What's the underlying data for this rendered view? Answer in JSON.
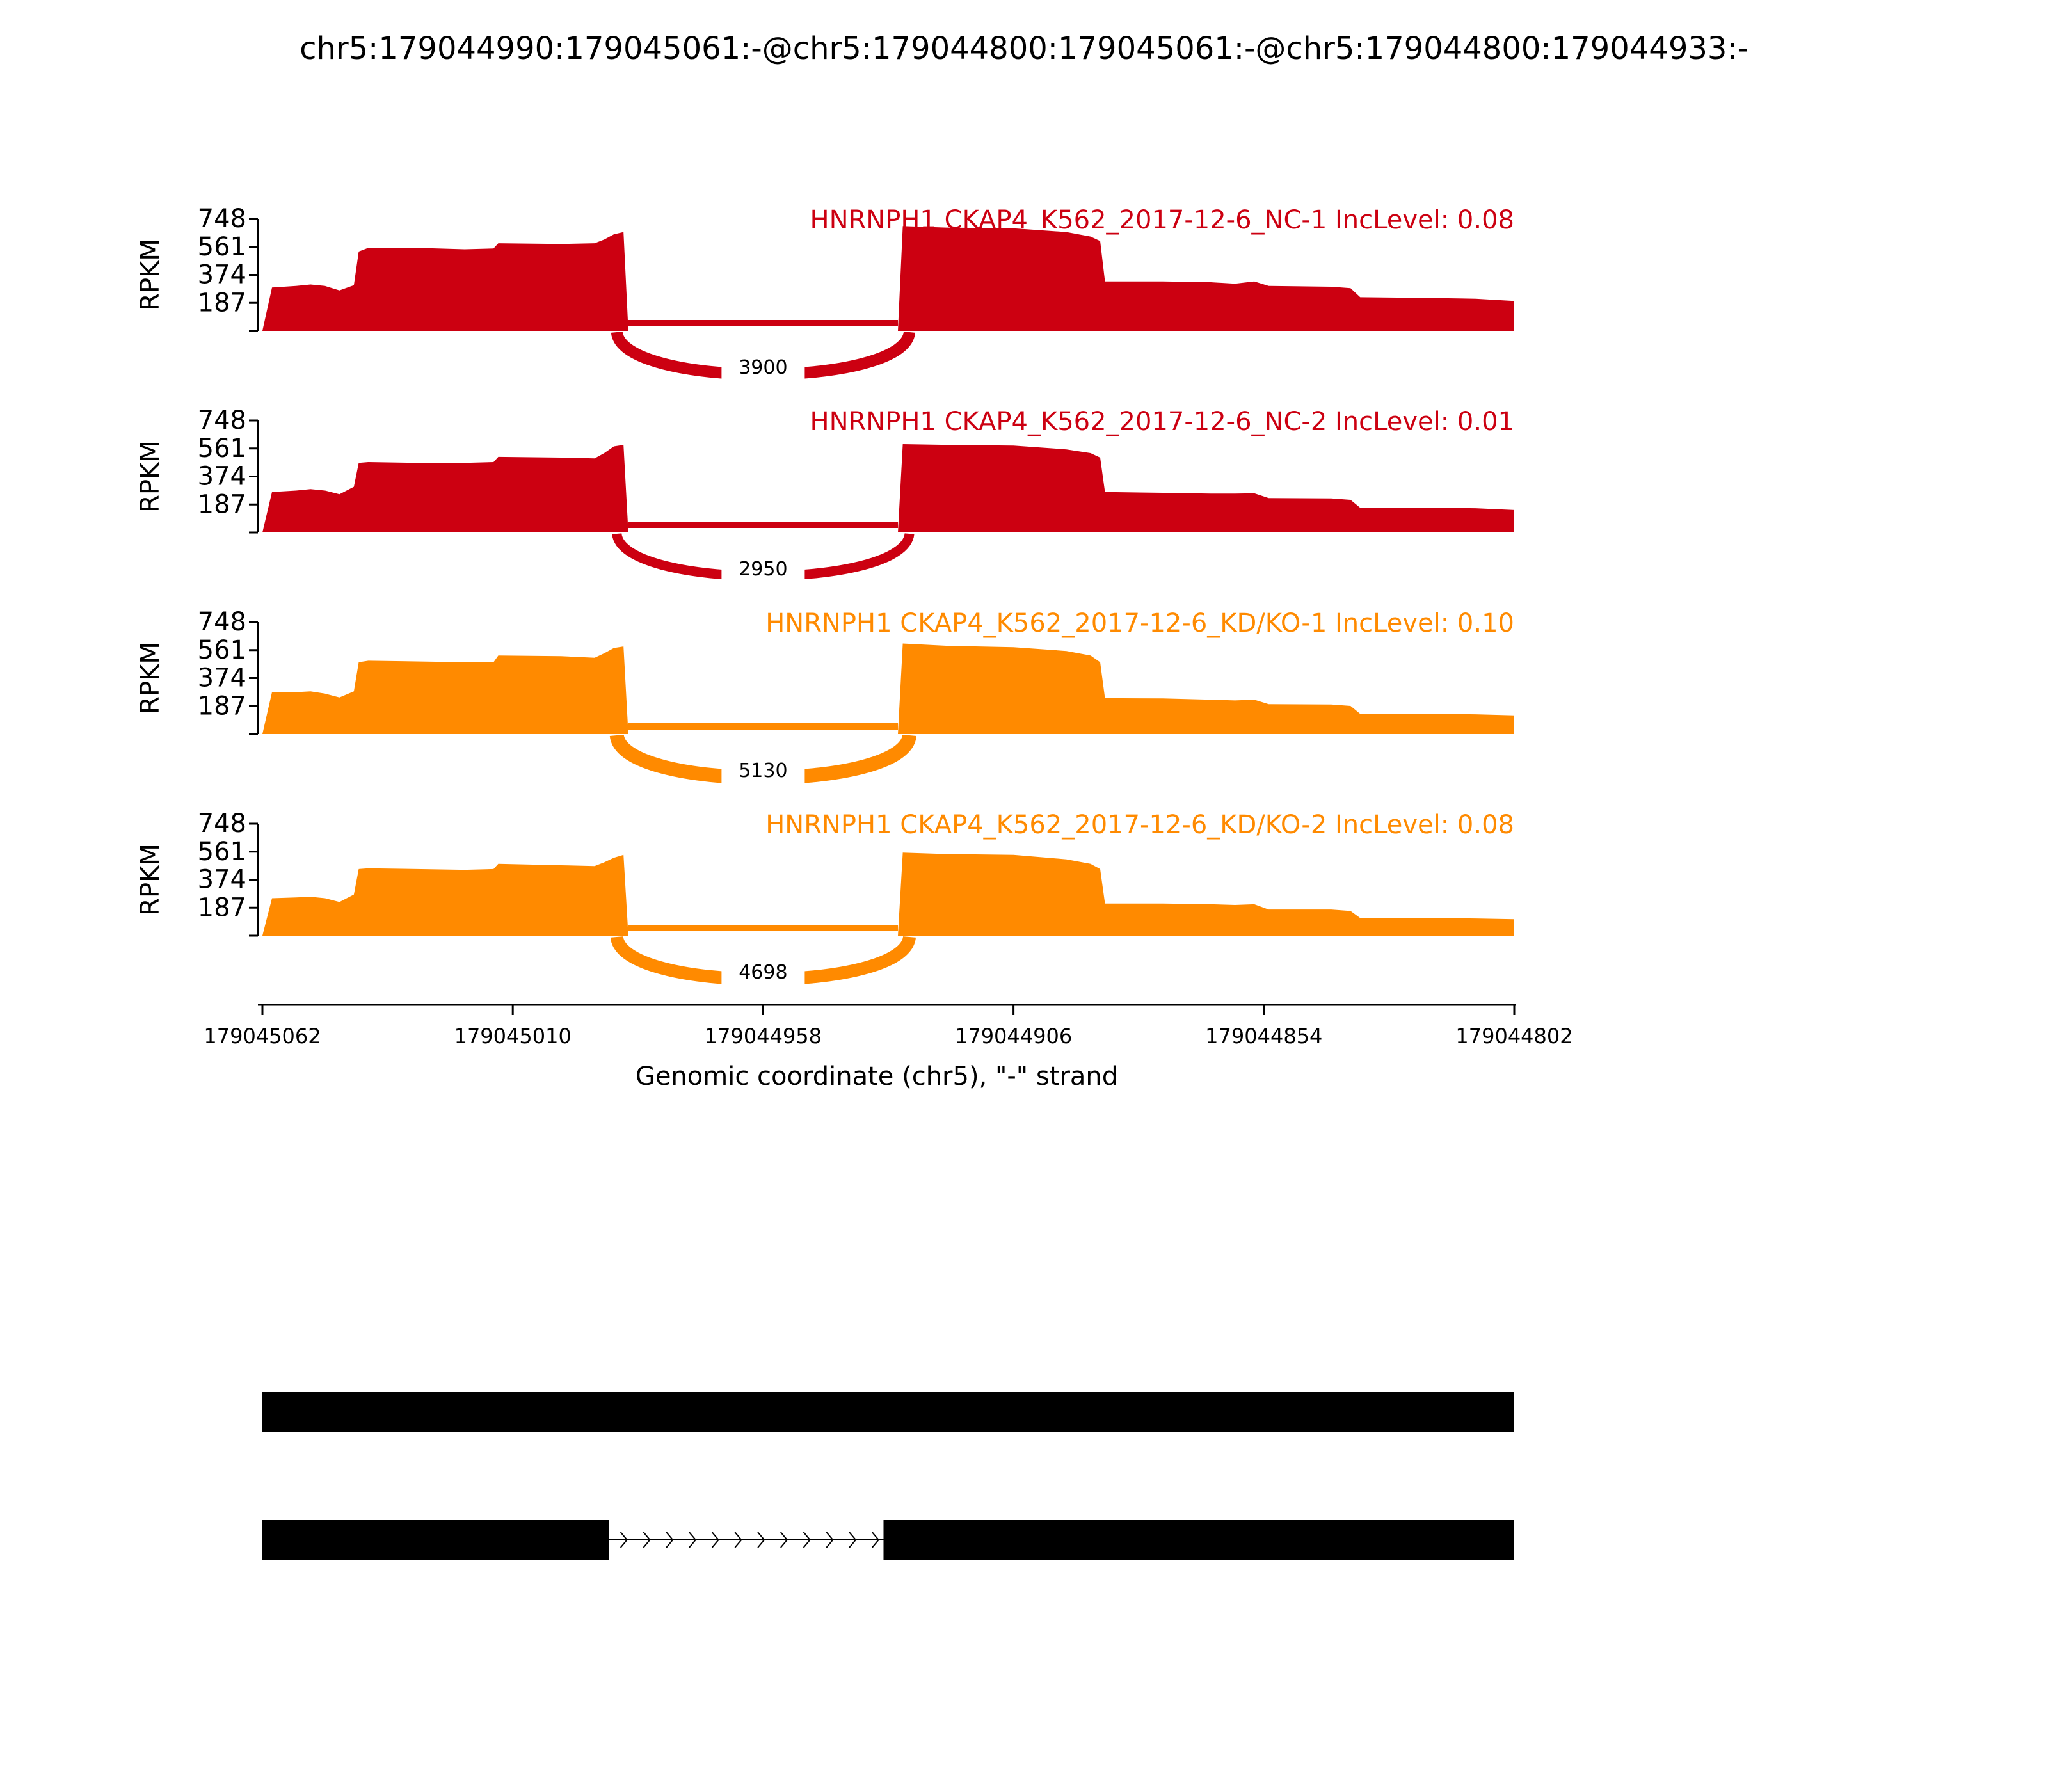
{
  "figure": {
    "title": "chr5:179044990:179045061:-@chr5:179044800:179045061:-@chr5:179044800:179044933:-"
  },
  "chart_data": {
    "type": "area",
    "title": "chr5:179044990:179045061:-@chr5:179044800:179045061:-@chr5:179044800:179044933:-",
    "xlabel": "Genomic coordinate (chr5), \"-\" strand",
    "ylabel": "RPKM",
    "x_ticks": [
      "179045062",
      "179045010",
      "179044958",
      "179044906",
      "179044854",
      "179044802"
    ],
    "xlim": [
      179045062,
      179044802
    ],
    "y_ticks": [
      "187",
      "374",
      "561",
      "748"
    ],
    "ylim": [
      0,
      748
    ],
    "colors": {
      "NC": "#cc0011",
      "KD/KO": "#ff8a00"
    },
    "series": [
      {
        "name": "HNRNPH1 CKAP4_K562_2017-12-6_NC-1 IncLevel: 0.08",
        "group": "NC",
        "junction_count": "3900",
        "coverage": [
          [
            179045062,
            0
          ],
          [
            179045060,
            290
          ],
          [
            179045055,
            300
          ],
          [
            179045052,
            310
          ],
          [
            179045049,
            300
          ],
          [
            179045046,
            270
          ],
          [
            179045043,
            305
          ],
          [
            179045042,
            530
          ],
          [
            179045040,
            555
          ],
          [
            179045030,
            555
          ],
          [
            179045020,
            545
          ],
          [
            179045014,
            550
          ],
          [
            179045013,
            585
          ],
          [
            179045000,
            580
          ],
          [
            179044993,
            585
          ],
          [
            179044991,
            610
          ],
          [
            179044989,
            645
          ],
          [
            179044987,
            660
          ],
          [
            179044986,
            0
          ],
          [
            179044930,
            0
          ],
          [
            179044929,
            700
          ],
          [
            179044920,
            690
          ],
          [
            179044906,
            685
          ],
          [
            179044895,
            660
          ],
          [
            179044890,
            630
          ],
          [
            179044888,
            600
          ],
          [
            179044887,
            330
          ],
          [
            179044875,
            330
          ],
          [
            179044865,
            325
          ],
          [
            179044860,
            315
          ],
          [
            179044856,
            330
          ],
          [
            179044853,
            300
          ],
          [
            179044840,
            295
          ],
          [
            179044836,
            285
          ],
          [
            179044834,
            225
          ],
          [
            179044820,
            220
          ],
          [
            179044810,
            215
          ],
          [
            179044802,
            200
          ],
          [
            179044802,
            0
          ]
        ]
      },
      {
        "name": "HNRNPH1 CKAP4_K562_2017-12-6_NC-2 IncLevel: 0.01",
        "group": "NC",
        "junction_count": "2950",
        "coverage": [
          [
            179045062,
            0
          ],
          [
            179045060,
            270
          ],
          [
            179045055,
            280
          ],
          [
            179045052,
            290
          ],
          [
            179045049,
            280
          ],
          [
            179045046,
            255
          ],
          [
            179045043,
            305
          ],
          [
            179045042,
            465
          ],
          [
            179045040,
            470
          ],
          [
            179045030,
            465
          ],
          [
            179045020,
            465
          ],
          [
            179045014,
            470
          ],
          [
            179045013,
            505
          ],
          [
            179045000,
            500
          ],
          [
            179044993,
            495
          ],
          [
            179044991,
            530
          ],
          [
            179044989,
            575
          ],
          [
            179044987,
            585
          ],
          [
            179044986,
            0
          ],
          [
            179044930,
            0
          ],
          [
            179044929,
            590
          ],
          [
            179044920,
            585
          ],
          [
            179044906,
            580
          ],
          [
            179044895,
            555
          ],
          [
            179044890,
            530
          ],
          [
            179044888,
            500
          ],
          [
            179044887,
            270
          ],
          [
            179044875,
            265
          ],
          [
            179044865,
            260
          ],
          [
            179044860,
            260
          ],
          [
            179044856,
            262
          ],
          [
            179044853,
            230
          ],
          [
            179044840,
            228
          ],
          [
            179044836,
            218
          ],
          [
            179044834,
            165
          ],
          [
            179044820,
            165
          ],
          [
            179044810,
            162
          ],
          [
            179044802,
            150
          ],
          [
            179044802,
            0
          ]
        ]
      },
      {
        "name": "HNRNPH1 CKAP4_K562_2017-12-6_KD/KO-1 IncLevel: 0.10",
        "group": "KD/KO",
        "junction_count": "5130",
        "coverage": [
          [
            179045062,
            0
          ],
          [
            179045060,
            280
          ],
          [
            179045055,
            280
          ],
          [
            179045052,
            285
          ],
          [
            179045049,
            270
          ],
          [
            179045046,
            245
          ],
          [
            179045043,
            285
          ],
          [
            179045042,
            480
          ],
          [
            179045040,
            490
          ],
          [
            179045030,
            485
          ],
          [
            179045020,
            480
          ],
          [
            179045014,
            480
          ],
          [
            179045013,
            525
          ],
          [
            179045000,
            520
          ],
          [
            179044993,
            510
          ],
          [
            179044991,
            540
          ],
          [
            179044989,
            575
          ],
          [
            179044987,
            585
          ],
          [
            179044986,
            0
          ],
          [
            179044930,
            0
          ],
          [
            179044929,
            605
          ],
          [
            179044920,
            590
          ],
          [
            179044906,
            580
          ],
          [
            179044895,
            555
          ],
          [
            179044890,
            525
          ],
          [
            179044888,
            480
          ],
          [
            179044887,
            240
          ],
          [
            179044875,
            238
          ],
          [
            179044865,
            230
          ],
          [
            179044860,
            225
          ],
          [
            179044856,
            230
          ],
          [
            179044853,
            200
          ],
          [
            179044840,
            198
          ],
          [
            179044836,
            188
          ],
          [
            179044834,
            135
          ],
          [
            179044820,
            135
          ],
          [
            179044810,
            132
          ],
          [
            179044802,
            125
          ],
          [
            179044802,
            0
          ]
        ]
      },
      {
        "name": "HNRNPH1 CKAP4_K562_2017-12-6_KD/KO-2 IncLevel: 0.08",
        "group": "KD/KO",
        "junction_count": "4698",
        "coverage": [
          [
            179045062,
            0
          ],
          [
            179045060,
            250
          ],
          [
            179045055,
            255
          ],
          [
            179045052,
            260
          ],
          [
            179045049,
            250
          ],
          [
            179045046,
            225
          ],
          [
            179045043,
            275
          ],
          [
            179045042,
            445
          ],
          [
            179045040,
            450
          ],
          [
            179045030,
            445
          ],
          [
            179045020,
            440
          ],
          [
            179045014,
            445
          ],
          [
            179045013,
            480
          ],
          [
            179045000,
            470
          ],
          [
            179044993,
            465
          ],
          [
            179044991,
            490
          ],
          [
            179044989,
            520
          ],
          [
            179044987,
            540
          ],
          [
            179044986,
            0
          ],
          [
            179044930,
            0
          ],
          [
            179044929,
            555
          ],
          [
            179044920,
            545
          ],
          [
            179044906,
            540
          ],
          [
            179044895,
            510
          ],
          [
            179044890,
            480
          ],
          [
            179044888,
            445
          ],
          [
            179044887,
            215
          ],
          [
            179044875,
            215
          ],
          [
            179044865,
            210
          ],
          [
            179044860,
            205
          ],
          [
            179044856,
            210
          ],
          [
            179044853,
            175
          ],
          [
            179044840,
            175
          ],
          [
            179044836,
            165
          ],
          [
            179044834,
            118
          ],
          [
            179044820,
            118
          ],
          [
            179044810,
            115
          ],
          [
            179044802,
            110
          ],
          [
            179044802,
            0
          ]
        ]
      }
    ],
    "transcripts": [
      {
        "exons": [
          [
            179045062,
            179044802
          ]
        ]
      },
      {
        "exons": [
          [
            179045062,
            179044990
          ],
          [
            179044933,
            179044802
          ]
        ]
      }
    ]
  }
}
